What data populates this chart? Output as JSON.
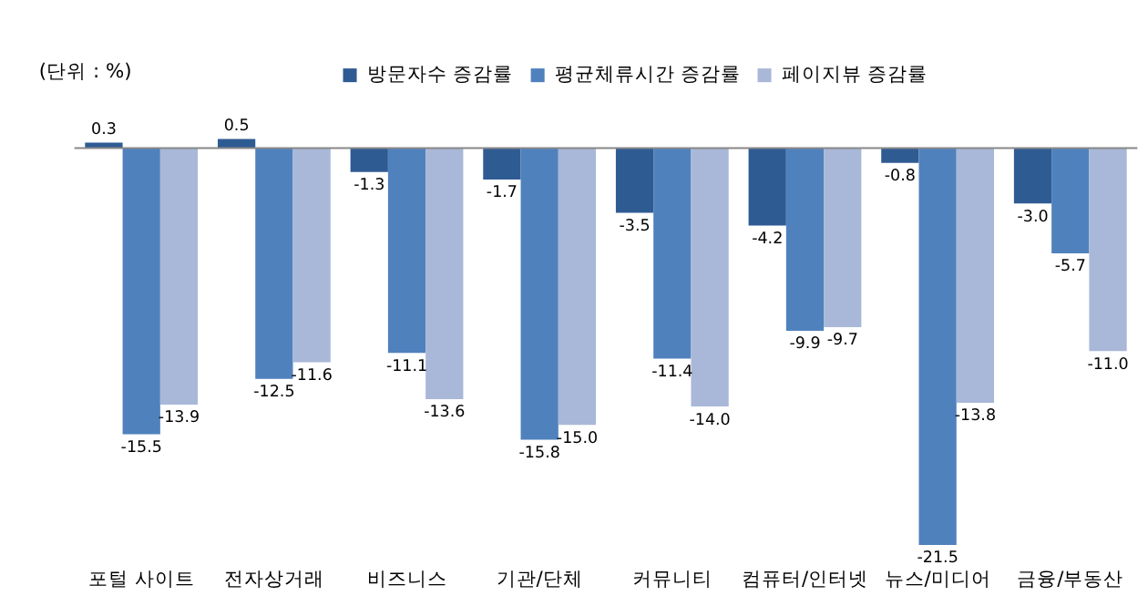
{
  "chart_data": {
    "type": "bar",
    "categories": [
      "포털 사이트",
      "전자상거래",
      "비즈니스",
      "기관/단체",
      "커뮤니티",
      "컴퓨터/인터넷",
      "뉴스/미디어",
      "금융/부동산"
    ],
    "series": [
      {
        "name": "방문자수 증감률",
        "color": "#2f5b93",
        "values": [
          0.3,
          0.5,
          -1.3,
          -1.7,
          -3.5,
          -4.2,
          -0.8,
          -3.0
        ],
        "value_labels": [
          "0.3",
          "0.5",
          "-1.3",
          "-1.7",
          "-3.5",
          "-4.2",
          "-0.8",
          "-3.0"
        ]
      },
      {
        "name": "평균체류시간 증감률",
        "color": "#4f81bd",
        "values": [
          -15.5,
          -12.5,
          -11.1,
          -15.8,
          -11.4,
          -9.9,
          -21.5,
          -5.7
        ],
        "value_labels": [
          "-15.5",
          "-12.5",
          "-11.1",
          "-15.8",
          "-11.4",
          "-9.9",
          "-21.5",
          "-5.7"
        ]
      },
      {
        "name": "페이지뷰 증감률",
        "color": "#a9b8d8",
        "values": [
          -13.9,
          -11.6,
          -13.6,
          -15.0,
          -14.0,
          -9.7,
          -13.8,
          -11.0
        ],
        "value_labels": [
          "-13.9",
          "-11.6",
          "-13.6",
          "-15.0",
          "-14.0",
          "-9.7",
          "-13.8",
          "-11.0"
        ]
      }
    ],
    "legend": "top",
    "grid": false,
    "annotations": [
      "(단위 : %)"
    ]
  }
}
